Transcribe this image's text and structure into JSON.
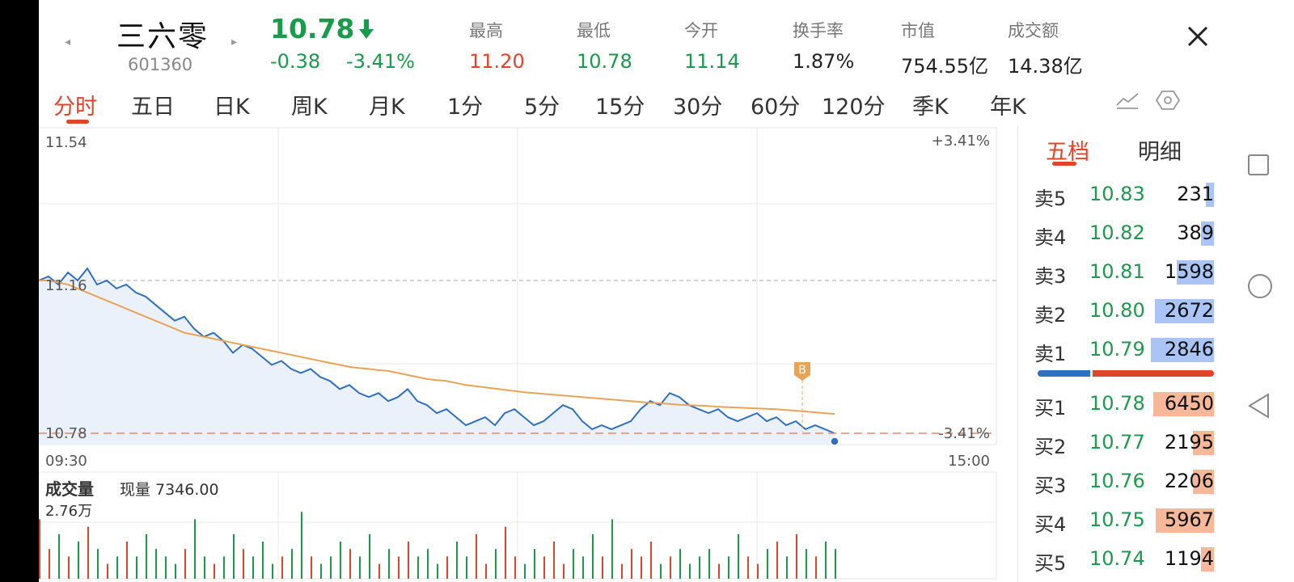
{
  "header": {
    "name": "三六零",
    "code": "601360",
    "price": "10.78",
    "change": "-0.38",
    "change_pct": "-3.41%",
    "stats": [
      {
        "label": "最高",
        "value": "11.20",
        "color": "#e0452b"
      },
      {
        "label": "最低",
        "value": "10.78",
        "color": "#1a9b4b"
      },
      {
        "label": "今开",
        "value": "11.14",
        "color": "#1a9b4b"
      },
      {
        "label": "换手率",
        "value": "1.87%",
        "color": "#222222"
      },
      {
        "label": "市值",
        "value": "754.55亿",
        "color": "#222222"
      },
      {
        "label": "成交额",
        "value": "14.38亿",
        "color": "#222222"
      }
    ]
  },
  "tabs": [
    "分时",
    "五日",
    "日K",
    "周K",
    "月K",
    "1分",
    "5分",
    "15分",
    "30分",
    "60分",
    "120分",
    "季K",
    "年K"
  ],
  "active_tab": "分时",
  "icons": [
    "chart-settings-icon",
    "hexagon-settings-icon",
    "close-icon"
  ],
  "chart_data": {
    "type": "line",
    "price_top": "11.54",
    "price_prev": "11.16",
    "price_bottom": "10.78",
    "pct_top": "+3.41%",
    "pct_bottom": "-3.41%",
    "time_start": "09:30",
    "time_end": "15:00",
    "ylim": [
      10.78,
      11.54
    ],
    "prev_close": 11.16,
    "marker_label": "B",
    "price_series": [
      11.16,
      11.17,
      11.15,
      11.18,
      11.16,
      11.19,
      11.15,
      11.16,
      11.14,
      11.15,
      11.13,
      11.12,
      11.1,
      11.08,
      11.06,
      11.07,
      11.04,
      11.02,
      11.03,
      11.01,
      10.98,
      11.0,
      10.99,
      10.97,
      10.95,
      10.96,
      10.94,
      10.93,
      10.94,
      10.92,
      10.91,
      10.89,
      10.9,
      10.88,
      10.87,
      10.88,
      10.86,
      10.87,
      10.89,
      10.86,
      10.85,
      10.83,
      10.84,
      10.82,
      10.8,
      10.81,
      10.82,
      10.8,
      10.83,
      10.84,
      10.82,
      10.8,
      10.81,
      10.83,
      10.85,
      10.84,
      10.81,
      10.79,
      10.8,
      10.79,
      10.8,
      10.81,
      10.84,
      10.86,
      10.85,
      10.88,
      10.87,
      10.85,
      10.84,
      10.83,
      10.84,
      10.82,
      10.81,
      10.82,
      10.83,
      10.81,
      10.82,
      10.8,
      10.81,
      10.79,
      10.8,
      10.79,
      10.78
    ],
    "avg_series": [
      11.16,
      11.16,
      11.155,
      11.15,
      11.14,
      11.13,
      11.12,
      11.11,
      11.1,
      11.09,
      11.08,
      11.07,
      11.06,
      11.05,
      11.04,
      11.03,
      11.025,
      11.02,
      11.015,
      11.01,
      11.005,
      11.0,
      10.995,
      10.99,
      10.985,
      10.98,
      10.975,
      10.97,
      10.965,
      10.96,
      10.955,
      10.95,
      10.945,
      10.942,
      10.94,
      10.937,
      10.935,
      10.93,
      10.925,
      10.92,
      10.915,
      10.912,
      10.91,
      10.905,
      10.9,
      10.897,
      10.894,
      10.891,
      10.888,
      10.885,
      10.882,
      10.88,
      10.878,
      10.876,
      10.874,
      10.872,
      10.87,
      10.868,
      10.866,
      10.864,
      10.862,
      10.86,
      10.858,
      10.856,
      10.855,
      10.853,
      10.851,
      10.85,
      10.849,
      10.848,
      10.846,
      10.845,
      10.844,
      10.843,
      10.842,
      10.841,
      10.84,
      10.838,
      10.836,
      10.834,
      10.832,
      10.83,
      10.828
    ],
    "volume_title": "成交量",
    "volume_now": "现量 7346.00",
    "volume_max": "2.76万",
    "volumes": [
      0.8,
      0.4,
      0.6,
      0.3,
      0.5,
      0.7,
      0.4,
      0.2,
      0.3,
      0.5,
      0.3,
      0.6,
      0.4,
      0.3,
      0.2,
      0.4,
      0.8,
      0.3,
      0.2,
      0.3,
      0.6,
      0.4,
      0.3,
      0.5,
      0.2,
      0.3,
      0.4,
      0.9,
      0.3,
      0.2,
      0.3,
      0.5,
      0.4,
      0.3,
      0.6,
      0.2,
      0.4,
      0.3,
      0.5,
      0.3,
      0.4,
      0.2,
      0.3,
      0.5,
      0.3,
      0.6,
      0.2,
      0.4,
      0.7,
      0.3,
      0.2,
      0.4,
      0.3,
      0.5,
      0.2,
      0.4,
      0.3,
      0.6,
      0.3,
      0.8,
      0.2,
      0.4,
      0.3,
      0.5,
      0.2,
      0.3,
      0.4,
      0.2,
      0.3,
      0.4,
      0.2,
      0.3,
      0.6,
      0.3,
      0.2,
      0.4,
      0.5,
      0.3,
      0.6,
      0.4,
      0.3,
      0.5,
      0.4
    ]
  },
  "orderbook": {
    "tabs": [
      "五档",
      "明细"
    ],
    "rows": [
      {
        "label": "卖5",
        "price": "10.83",
        "vol": "231",
        "ratio": 0.08,
        "side": "sell"
      },
      {
        "label": "卖4",
        "price": "10.82",
        "vol": "389",
        "ratio": 0.12,
        "side": "sell"
      },
      {
        "label": "卖3",
        "price": "10.81",
        "vol": "1598",
        "ratio": 0.35,
        "side": "sell"
      },
      {
        "label": "卖2",
        "price": "10.80",
        "vol": "2672",
        "ratio": 0.56,
        "side": "sell"
      },
      {
        "label": "卖1",
        "price": "10.79",
        "vol": "2846",
        "ratio": 0.6,
        "side": "sell"
      },
      {
        "label": "买1",
        "price": "10.78",
        "vol": "6450",
        "ratio": 0.58,
        "side": "buy"
      },
      {
        "label": "买2",
        "price": "10.77",
        "vol": "2195",
        "ratio": 0.2,
        "side": "buy"
      },
      {
        "label": "买3",
        "price": "10.76",
        "vol": "2206",
        "ratio": 0.2,
        "side": "buy"
      },
      {
        "label": "买4",
        "price": "10.75",
        "vol": "5967",
        "ratio": 0.55,
        "side": "buy"
      },
      {
        "label": "买5",
        "price": "10.74",
        "vol": "1194",
        "ratio": 0.12,
        "side": "buy"
      }
    ],
    "sell_ratio": 0.3
  },
  "colors": {
    "up": "#e0452b",
    "down": "#1a9b4b",
    "line": "#2f6fc2",
    "avg": "#e8a456",
    "sell_bar": "#a9c4f5",
    "buy_bar": "#f7b89a"
  }
}
